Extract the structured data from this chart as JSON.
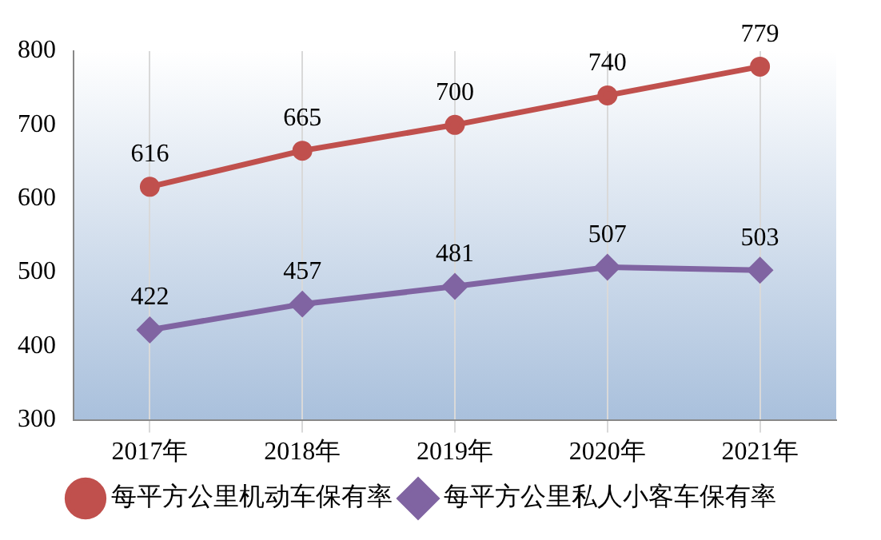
{
  "chart_data": {
    "type": "line",
    "categories": [
      "2017年",
      "2018年",
      "2019年",
      "2020年",
      "2021年"
    ],
    "series": [
      {
        "name": "每平方公里机动车保有率",
        "color": "#c0504d",
        "values": [
          616,
          665,
          700,
          740,
          779
        ],
        "marker": "circle"
      },
      {
        "name": "每平方公里私人小客车保有率",
        "color": "#8064a2",
        "values": [
          422,
          457,
          481,
          507,
          503
        ],
        "marker": "diamond"
      }
    ],
    "ylim": [
      300,
      800
    ],
    "yticks": [
      300,
      400,
      500,
      600,
      700,
      800
    ],
    "grid": "x",
    "legend": "bottom",
    "data_labels": true
  }
}
